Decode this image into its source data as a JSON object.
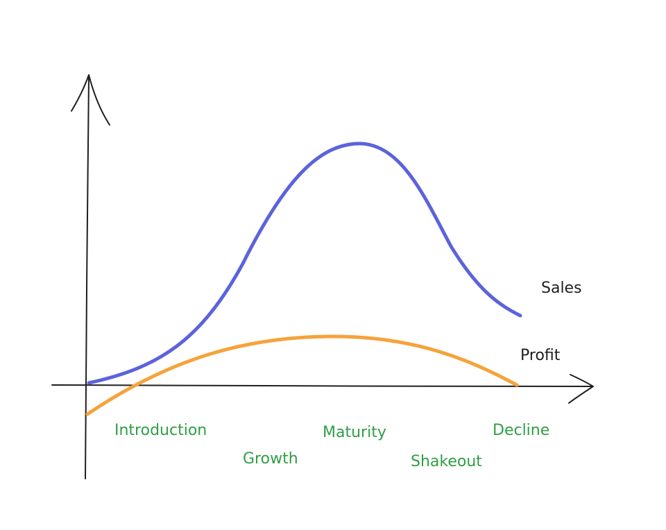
{
  "curves": [
    {
      "label": "Sales"
    },
    {
      "label": "Profit"
    }
  ],
  "stages": [
    "Introduction",
    "Growth",
    "Maturity",
    "Shakeout",
    "Decline"
  ]
}
